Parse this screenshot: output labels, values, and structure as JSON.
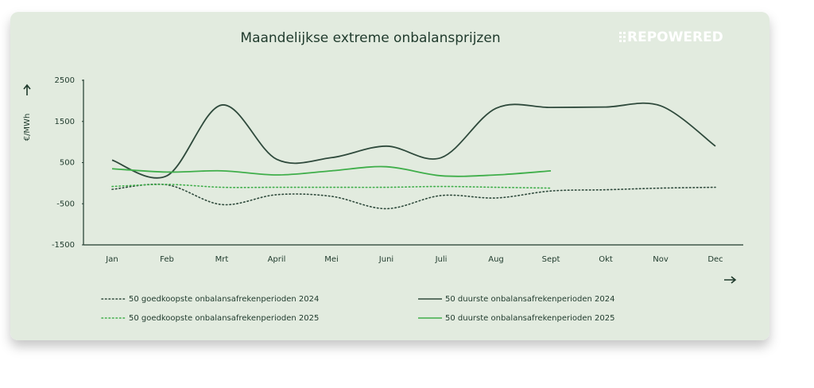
{
  "chart_data": {
    "type": "line",
    "title": "Maandelijkse extreme onbalansprijzen",
    "brand": "REPOWERED",
    "y_label": "€/MWh",
    "categories": [
      "Jan",
      "Feb",
      "Mrt",
      "April",
      "Mei",
      "Juni",
      "Juli",
      "Aug",
      "Sept",
      "Okt",
      "Nov",
      "Dec"
    ],
    "series": [
      {
        "name": "50 goedkoopste onbalansafrekenperioden 2024",
        "color": "#2f4a3c",
        "style": "dotted",
        "values": [
          -150,
          -40,
          -520,
          -280,
          -320,
          -620,
          -300,
          -360,
          -190,
          -160,
          -120,
          -100
        ]
      },
      {
        "name": "50 duurste onbalansafrekenperioden 2024",
        "color": "#2f4a3c",
        "style": "solid",
        "values": [
          560,
          180,
          1900,
          580,
          620,
          900,
          620,
          1820,
          1840,
          1850,
          1880,
          900
        ]
      },
      {
        "name": "50 goedkoopste onbalansafrekenperioden 2025",
        "color": "#3fae4a",
        "style": "dotted",
        "values": [
          -80,
          -30,
          -100,
          -100,
          -100,
          -100,
          -80,
          -100,
          -120,
          null,
          null,
          null
        ]
      },
      {
        "name": "50 duurste onbalansafrekenperioden 2025",
        "color": "#3fae4a",
        "style": "solid",
        "values": [
          350,
          270,
          300,
          200,
          300,
          400,
          180,
          200,
          300,
          null,
          null,
          null
        ]
      }
    ],
    "ylim": [
      -1500,
      2500
    ],
    "yticks": [
      -1500,
      -500,
      500,
      1500,
      2500
    ],
    "grid": false
  }
}
